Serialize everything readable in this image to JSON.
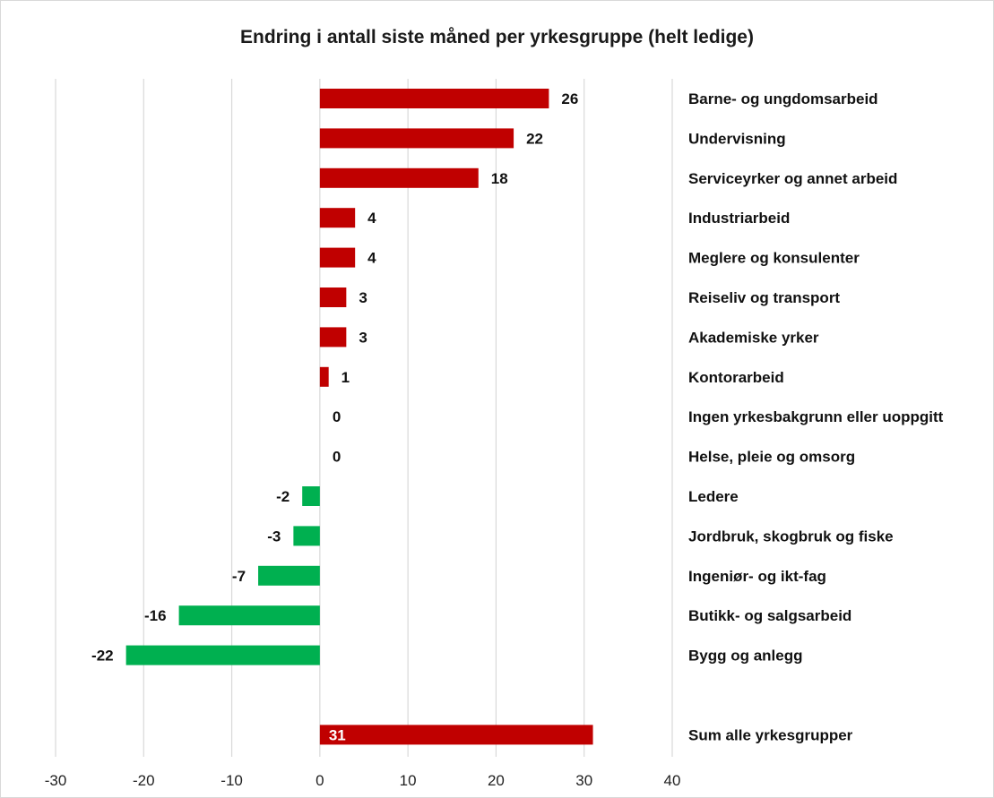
{
  "chart_data": {
    "type": "bar",
    "orientation": "horizontal",
    "title": "Endring i antall siste måned per yrkesgruppe (helt ledige)",
    "categories": [
      "Barne- og ungdomsarbeid",
      "Undervisning",
      "Serviceyrker og annet arbeid",
      "Industriarbeid",
      "Meglere og konsulenter",
      "Reiseliv og transport",
      "Akademiske yrker",
      "Kontorarbeid",
      "Ingen yrkesbakgrunn eller uoppgitt",
      "Helse, pleie og omsorg",
      "Ledere",
      "Jordbruk, skogbruk og fiske",
      "Ingeniør- og ikt-fag",
      "Butikk- og salgsarbeid",
      "Bygg og anlegg",
      "",
      "Sum alle yrkesgrupper"
    ],
    "values": [
      26,
      22,
      18,
      4,
      4,
      3,
      3,
      1,
      0,
      0,
      -2,
      -3,
      -7,
      -16,
      -22,
      null,
      31
    ],
    "value_labels": [
      "26",
      "22",
      "18",
      "4",
      "4",
      "3",
      "3",
      "1",
      "0",
      "0",
      "-2",
      "-3",
      "-7",
      "-16",
      "-22",
      "",
      "31"
    ],
    "xlim": [
      -30,
      40
    ],
    "x_ticks": [
      -30,
      -20,
      -10,
      0,
      10,
      20,
      30,
      40
    ],
    "grid": true,
    "colors": {
      "positive": "#c00000",
      "negative": "#00b050"
    },
    "xlabel": "",
    "ylabel": ""
  }
}
